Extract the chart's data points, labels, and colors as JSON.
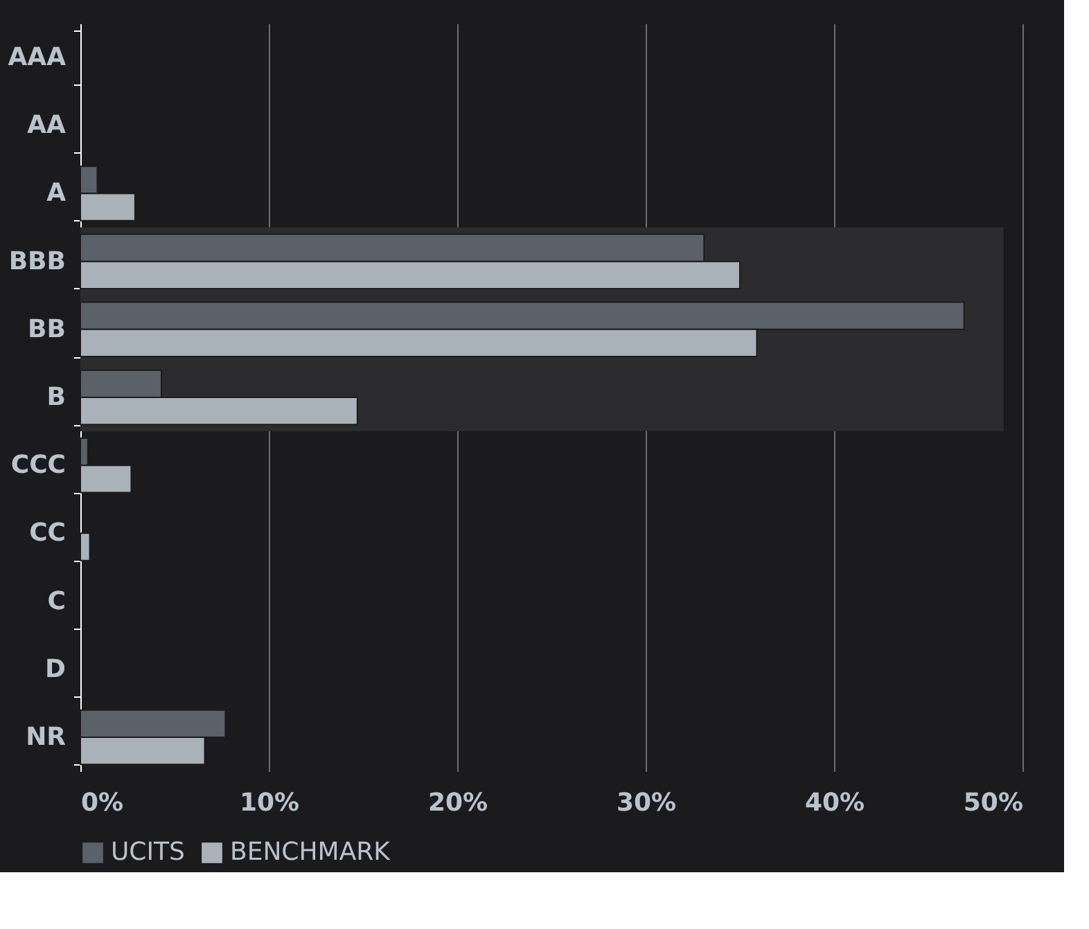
{
  "chart_data": {
    "type": "bar",
    "orientation": "horizontal",
    "categories": [
      "AAA",
      "AA",
      "A",
      "BBB",
      "BB",
      "B",
      "CCC",
      "CC",
      "C",
      "D",
      "NR"
    ],
    "series": [
      {
        "name": "UCITS",
        "color": "#5b6168",
        "values": [
          null,
          null,
          0.9,
          33.1,
          46.9,
          4.3,
          0.4,
          null,
          null,
          null,
          7.7
        ]
      },
      {
        "name": "BENCHMARK",
        "color": "#a9b2b9",
        "values": [
          null,
          null,
          2.9,
          35.0,
          35.9,
          14.7,
          2.7,
          0.5,
          null,
          null,
          6.6
        ]
      }
    ],
    "xlim": [
      0,
      50
    ],
    "xticks": [
      {
        "value": 0,
        "label": "0%"
      },
      {
        "value": 10,
        "label": "10%"
      },
      {
        "value": 20,
        "label": "20%"
      },
      {
        "value": 30,
        "label": "30%"
      },
      {
        "value": 40,
        "label": "40%"
      },
      {
        "value": 50,
        "label": "50%"
      }
    ],
    "bands": [
      {
        "axis": "y",
        "from": "BBB",
        "to": "B",
        "color": "#2c2c2e"
      }
    ],
    "grid": "x",
    "legend": "bottom"
  }
}
